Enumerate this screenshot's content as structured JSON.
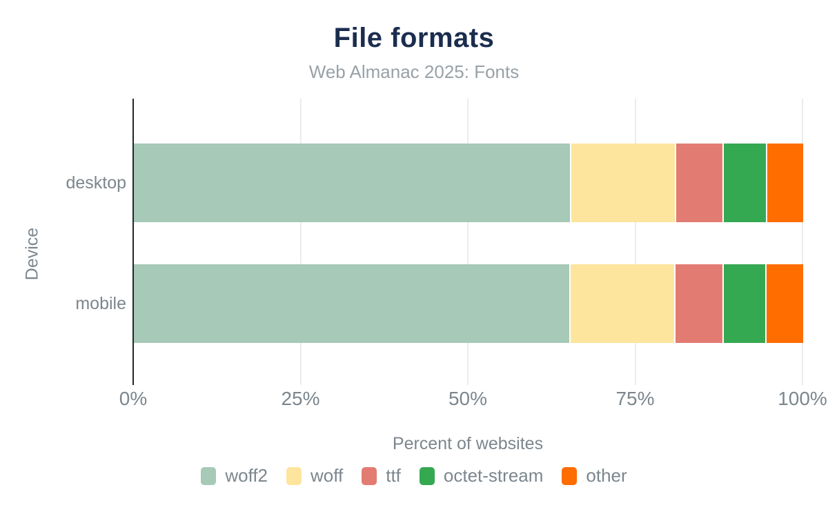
{
  "chart_data": {
    "type": "bar",
    "stacked": true,
    "orientation": "horizontal",
    "title": "File formats",
    "subtitle": "Web Almanac 2025: Fonts",
    "xlabel": "Percent of websites",
    "ylabel": "Device",
    "categories": [
      "desktop",
      "mobile"
    ],
    "series": [
      {
        "name": "woff2",
        "color": "#a7c9b7",
        "values": [
          65.2,
          65.1
        ]
      },
      {
        "name": "woff",
        "color": "#fee59d",
        "values": [
          15.6,
          15.6
        ]
      },
      {
        "name": "ttf",
        "color": "#e27c72",
        "values": [
          7.1,
          7.2
        ]
      },
      {
        "name": "octet-stream",
        "color": "#35a852",
        "values": [
          6.5,
          6.4
        ]
      },
      {
        "name": "other",
        "color": "#ff6c00",
        "values": [
          5.6,
          5.7
        ]
      }
    ],
    "x_tick_labels": [
      "0%",
      "25%",
      "50%",
      "75%",
      "100%"
    ],
    "x_tick_values": [
      0,
      25,
      50,
      75,
      100
    ],
    "xlim": [
      0,
      100
    ],
    "grid": "vertical",
    "legend_position": "bottom"
  },
  "colors": {
    "title_text": "#1b2d4e",
    "subtitle_text": "#98a1a7",
    "axis_text": "#7c868d",
    "axis_line": "#212529",
    "gridline": "#e9ecee",
    "background": "#ffffff"
  }
}
